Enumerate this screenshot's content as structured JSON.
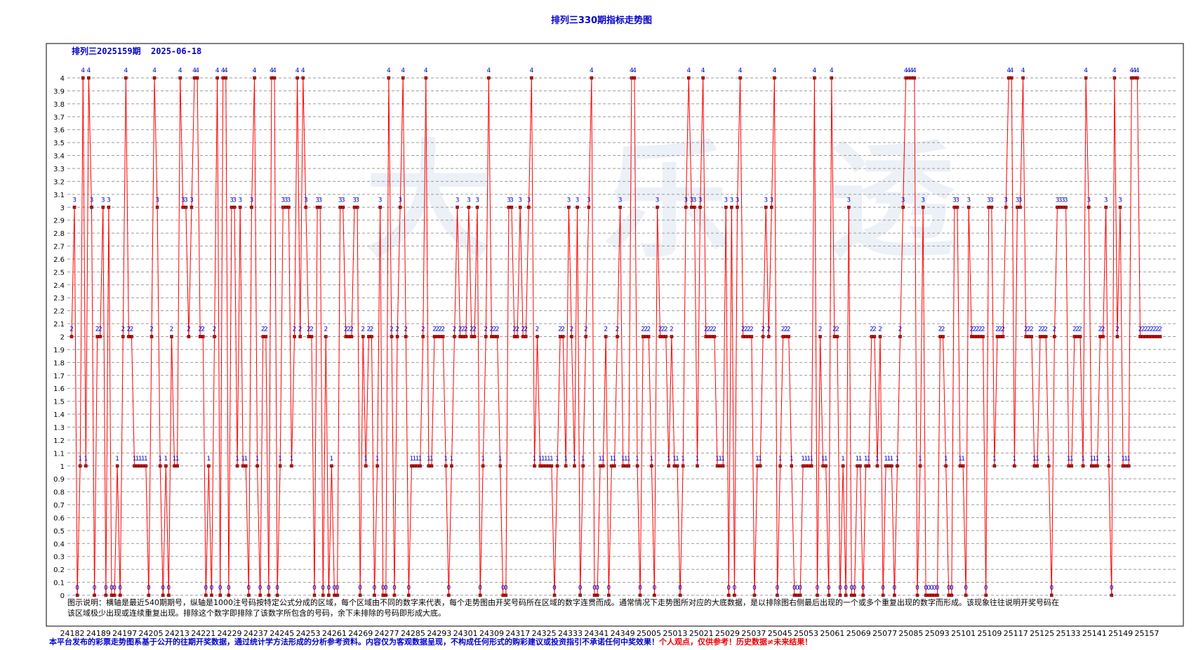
{
  "title": "排列三330期指标走势图",
  "header": {
    "issue_label": "排列三2025159期",
    "date": "2025-06-18"
  },
  "watermark": {
    "line1": "大",
    "line2": "乐",
    "line3": "透"
  },
  "legend_note": "图示说明：横轴是最近540期期号，纵轴是1000注号码按特定公式分成的区域，每个区域由不同的数字来代表，每个走势图由开奖号码所在区域的数字连贯而成。通常情况下走势图所对应的大底数据，是以排除图右侧最后出现的一个或多个重复出现的数字而形成。该现象往往说明开奖号码在该区域极少出现或连续重复出现。排除这个数字即排除了该数字所包含的号码，余下未排除的号码即形成大底。",
  "disclaimer": {
    "main": "本平台发布的彩票走势图系基于公开的往期开奖数据，通过统计学方法形成的分析参考资料。内容仅为客观数据呈现，不构成任何形式的购彩建议或投资指引不承诺任何中奖效果！",
    "warn": "个人观点，仅供参考！历史数据≠未来结果！"
  },
  "chart_data": {
    "type": "line",
    "title": "排列三330期指标走势图",
    "ylim": [
      0,
      4
    ],
    "y_ticks": [
      "0",
      "0.1",
      "0.2",
      "0.3",
      "0.4",
      "0.5",
      "0.6",
      "0.7",
      "0.8",
      "0.9",
      "1",
      "1.1",
      "1.2",
      "1.3",
      "1.4",
      "1.5",
      "1.6",
      "1.7",
      "1.8",
      "1.9",
      "2",
      "2.1",
      "2.2",
      "2.3",
      "2.4",
      "2.5",
      "2.6",
      "2.7",
      "2.8",
      "2.9",
      "3",
      "3.1",
      "3.2",
      "3.3",
      "3.4",
      "3.5",
      "3.6",
      "3.7",
      "3.8",
      "3.9",
      "4"
    ],
    "x_ticks": [
      "24182",
      "24189",
      "24197",
      "24205",
      "24213",
      "24221",
      "24229",
      "24237",
      "24245",
      "24253",
      "24261",
      "24269",
      "24277",
      "24285",
      "24293",
      "24301",
      "24309",
      "24317",
      "24325",
      "24333",
      "24341",
      "24349",
      "25005",
      "25013",
      "25021",
      "25029",
      "25037",
      "25045",
      "25053",
      "25061",
      "25069",
      "25077",
      "25085",
      "25093",
      "25101",
      "25109",
      "25117",
      "25125",
      "25133",
      "25141",
      "25149",
      "25157"
    ],
    "grid": true,
    "line_color": "#ff0000",
    "marker_color": "#cc0000",
    "label_color": "#0000cc",
    "series": [
      {
        "values": [
          2,
          3,
          0,
          1,
          4,
          1,
          4,
          3,
          0,
          2,
          2,
          3,
          0,
          3,
          0,
          0,
          1,
          0,
          2,
          4,
          2,
          2,
          1,
          1,
          1,
          1,
          1,
          0,
          2,
          4,
          3,
          1,
          0,
          1,
          0,
          2,
          1,
          1,
          4,
          3,
          3,
          2,
          3,
          4,
          4,
          2,
          2,
          0,
          1,
          0,
          2,
          4,
          0,
          4,
          4,
          0,
          3,
          3,
          1,
          3,
          1,
          1,
          0,
          3,
          4,
          1,
          0,
          2,
          2,
          0,
          4,
          4,
          0,
          1,
          3,
          3,
          3,
          1,
          2,
          4,
          2,
          4,
          3,
          2,
          2,
          0,
          3,
          3,
          0,
          2,
          0,
          1,
          0,
          0,
          3,
          3,
          2,
          2,
          2,
          3,
          3,
          0,
          2,
          1,
          2,
          2,
          0,
          1,
          3,
          0,
          0,
          4,
          2,
          0,
          2,
          3,
          4,
          2,
          0,
          1,
          1,
          1,
          1,
          2,
          4,
          1,
          1,
          2,
          2,
          2,
          2,
          1,
          0,
          1,
          2,
          3,
          2,
          2,
          2,
          3,
          2,
          2,
          3,
          0,
          1,
          2,
          4,
          2,
          2,
          2,
          1,
          0,
          0,
          3,
          3,
          2,
          2,
          3,
          2,
          2,
          3,
          4,
          1,
          2,
          1,
          1,
          1,
          1,
          1,
          0,
          1,
          2,
          2,
          1,
          3,
          2,
          1,
          3,
          0,
          1,
          2,
          3,
          4,
          0,
          0,
          1,
          1,
          2,
          0,
          1,
          1,
          2,
          3,
          1,
          1,
          1,
          4,
          4,
          1,
          0,
          2,
          2,
          2,
          1,
          0,
          3,
          2,
          2,
          2,
          1,
          2,
          1,
          1,
          0,
          1,
          3,
          4,
          3,
          3,
          1,
          3,
          4,
          2,
          2,
          2,
          2,
          1,
          1,
          1,
          3,
          0,
          3,
          0,
          3,
          4,
          2,
          2,
          2,
          2,
          0,
          1,
          1,
          2,
          3,
          2,
          3,
          4,
          0,
          1,
          2,
          2,
          2,
          1,
          0,
          0,
          0,
          1,
          1,
          1,
          1,
          4,
          0,
          2,
          1,
          1,
          0,
          4,
          2,
          2,
          0,
          1,
          0,
          3,
          0,
          0,
          1,
          1,
          0,
          1,
          1,
          2,
          2,
          1,
          2,
          0,
          1,
          1,
          1,
          0,
          1,
          2,
          3,
          4,
          4,
          4,
          4,
          0,
          1,
          3,
          0,
          0,
          0,
          0,
          0,
          2,
          2,
          1,
          0,
          0,
          3,
          3,
          1,
          1,
          0,
          3,
          2,
          2,
          2,
          2,
          2,
          0,
          3,
          3,
          1,
          2,
          2,
          2,
          3,
          4,
          4,
          1,
          3,
          3,
          4,
          2,
          2,
          2,
          1,
          1,
          2,
          2,
          2,
          1,
          0,
          2,
          3,
          3,
          3,
          3,
          1,
          1,
          2,
          2,
          2,
          1,
          4,
          3,
          1,
          1,
          1,
          2,
          2,
          3,
          1,
          0,
          4,
          2,
          3,
          1,
          1,
          1,
          4,
          4,
          4,
          2,
          2,
          2,
          2,
          2,
          2,
          2,
          2
        ]
      }
    ]
  }
}
